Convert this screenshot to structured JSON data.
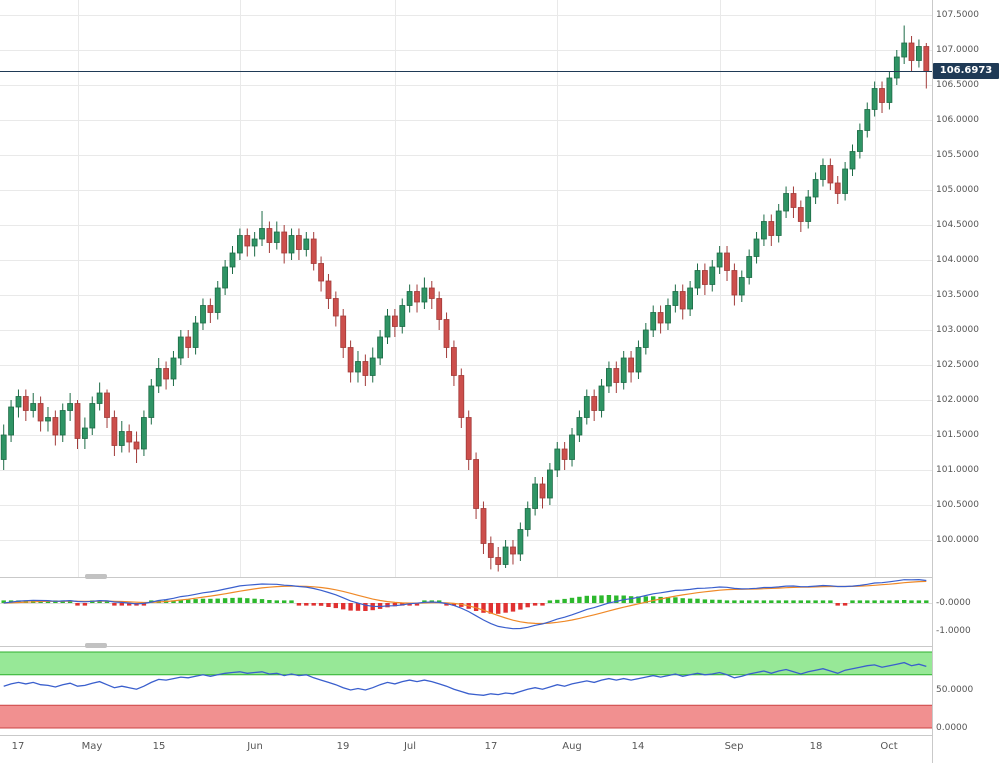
{
  "colors": {
    "background": "#ffffff",
    "grid": "#e9e9e9",
    "separator": "#c9c9c9",
    "axis_text": "#555555",
    "bull": "#2f9465",
    "bull_border": "#1d6b46",
    "bear": "#cc4f4c",
    "bear_border": "#a23b39",
    "price_line": "#1f3a56",
    "badge_bg": "#1f3a56",
    "badge_text": "#ffffff",
    "macd_line": "#3a5fcd",
    "signal_line": "#ef8927",
    "hist_pos": "#2db82d",
    "hist_neg": "#e03131",
    "band_green_fill": "#97e897",
    "band_green_edge": "#2faf2f",
    "band_red_fill": "#f19090",
    "band_red_edge": "#cc4444",
    "stoch_line": "#3a5fcd"
  },
  "chart_data": {
    "type": "candlestick",
    "panels": [
      "price",
      "macd",
      "stochastic"
    ],
    "main": {
      "last_price": 106.6973,
      "last_price_label": "106.6973",
      "price_axis_labels": [
        "107.5000",
        "107.0000",
        "106.5000",
        "106.0000",
        "105.5000",
        "105.0000",
        "104.5000",
        "104.0000",
        "103.5000",
        "103.0000",
        "102.5000",
        "102.0000",
        "101.5000",
        "101.0000",
        "100.5000",
        "100.0000"
      ],
      "price_axis": {
        "max": 107.5,
        "min": 100.0,
        "step": 0.5
      },
      "month_grid_indices": [
        12,
        34,
        55,
        77,
        99,
        120
      ],
      "candles": [
        [
          101.15,
          101.65,
          101.0,
          101.5
        ],
        [
          101.5,
          102.0,
          101.4,
          101.9
        ],
        [
          101.9,
          102.15,
          101.75,
          102.05
        ],
        [
          102.05,
          102.15,
          101.7,
          101.85
        ],
        [
          101.85,
          102.1,
          101.75,
          101.95
        ],
        [
          101.95,
          102.05,
          101.55,
          101.7
        ],
        [
          101.7,
          101.9,
          101.55,
          101.75
        ],
        [
          101.75,
          101.85,
          101.35,
          101.5
        ],
        [
          101.5,
          101.95,
          101.4,
          101.85
        ],
        [
          101.85,
          102.1,
          101.7,
          101.95
        ],
        [
          101.95,
          102.0,
          101.3,
          101.45
        ],
        [
          101.45,
          101.75,
          101.3,
          101.6
        ],
        [
          101.6,
          102.05,
          101.5,
          101.95
        ],
        [
          101.95,
          102.25,
          101.85,
          102.1
        ],
        [
          102.1,
          102.15,
          101.6,
          101.75
        ],
        [
          101.75,
          101.85,
          101.2,
          101.35
        ],
        [
          101.35,
          101.7,
          101.25,
          101.55
        ],
        [
          101.55,
          101.65,
          101.25,
          101.4
        ],
        [
          101.4,
          101.55,
          101.1,
          101.3
        ],
        [
          101.3,
          101.85,
          101.2,
          101.75
        ],
        [
          101.75,
          102.3,
          101.65,
          102.2
        ],
        [
          102.2,
          102.6,
          102.1,
          102.45
        ],
        [
          102.45,
          102.55,
          102.15,
          102.3
        ],
        [
          102.3,
          102.7,
          102.2,
          102.6
        ],
        [
          102.6,
          103.0,
          102.5,
          102.9
        ],
        [
          102.9,
          103.0,
          102.6,
          102.75
        ],
        [
          102.75,
          103.2,
          102.65,
          103.1
        ],
        [
          103.1,
          103.45,
          103.0,
          103.35
        ],
        [
          103.35,
          103.45,
          103.1,
          103.25
        ],
        [
          103.25,
          103.7,
          103.15,
          103.6
        ],
        [
          103.6,
          104.0,
          103.5,
          103.9
        ],
        [
          103.9,
          104.2,
          103.8,
          104.1
        ],
        [
          104.1,
          104.45,
          104.0,
          104.35
        ],
        [
          104.35,
          104.45,
          104.05,
          104.2
        ],
        [
          104.2,
          104.4,
          104.05,
          104.3
        ],
        [
          104.3,
          104.7,
          104.2,
          104.45
        ],
        [
          104.45,
          104.55,
          104.1,
          104.25
        ],
        [
          104.25,
          104.55,
          104.15,
          104.4
        ],
        [
          104.4,
          104.5,
          103.95,
          104.1
        ],
        [
          104.1,
          104.45,
          104.0,
          104.35
        ],
        [
          104.35,
          104.45,
          104.0,
          104.15
        ],
        [
          104.15,
          104.4,
          104.05,
          104.3
        ],
        [
          104.3,
          104.4,
          103.85,
          103.95
        ],
        [
          103.95,
          104.05,
          103.55,
          103.7
        ],
        [
          103.7,
          103.8,
          103.3,
          103.45
        ],
        [
          103.45,
          103.55,
          103.05,
          103.2
        ],
        [
          103.2,
          103.3,
          102.6,
          102.75
        ],
        [
          102.75,
          102.85,
          102.25,
          102.4
        ],
        [
          102.4,
          102.7,
          102.25,
          102.55
        ],
        [
          102.55,
          102.65,
          102.2,
          102.35
        ],
        [
          102.35,
          102.75,
          102.25,
          102.6
        ],
        [
          102.6,
          103.0,
          102.5,
          102.9
        ],
        [
          102.9,
          103.3,
          102.8,
          103.2
        ],
        [
          103.2,
          103.3,
          102.9,
          103.05
        ],
        [
          103.05,
          103.45,
          102.95,
          103.35
        ],
        [
          103.35,
          103.65,
          103.25,
          103.55
        ],
        [
          103.55,
          103.65,
          103.25,
          103.4
        ],
        [
          103.4,
          103.75,
          103.3,
          103.6
        ],
        [
          103.6,
          103.7,
          103.3,
          103.45
        ],
        [
          103.45,
          103.55,
          103.0,
          103.15
        ],
        [
          103.15,
          103.25,
          102.6,
          102.75
        ],
        [
          102.75,
          102.85,
          102.2,
          102.35
        ],
        [
          102.35,
          102.45,
          101.6,
          101.75
        ],
        [
          101.75,
          101.85,
          101.0,
          101.15
        ],
        [
          101.15,
          101.25,
          100.3,
          100.45
        ],
        [
          100.45,
          100.55,
          99.8,
          99.95
        ],
        [
          99.95,
          100.05,
          99.58,
          99.75
        ],
        [
          99.75,
          99.9,
          99.55,
          99.65
        ],
        [
          99.65,
          100.0,
          99.6,
          99.9
        ],
        [
          99.9,
          100.0,
          99.65,
          99.8
        ],
        [
          99.8,
          100.25,
          99.7,
          100.15
        ],
        [
          100.15,
          100.55,
          100.05,
          100.45
        ],
        [
          100.45,
          100.9,
          100.35,
          100.8
        ],
        [
          100.8,
          100.9,
          100.45,
          100.6
        ],
        [
          100.6,
          101.1,
          100.5,
          101.0
        ],
        [
          101.0,
          101.4,
          100.9,
          101.3
        ],
        [
          101.3,
          101.4,
          101.0,
          101.15
        ],
        [
          101.15,
          101.6,
          101.05,
          101.5
        ],
        [
          101.5,
          101.85,
          101.4,
          101.75
        ],
        [
          101.75,
          102.15,
          101.65,
          102.05
        ],
        [
          102.05,
          102.15,
          101.7,
          101.85
        ],
        [
          101.85,
          102.3,
          101.75,
          102.2
        ],
        [
          102.2,
          102.55,
          102.1,
          102.45
        ],
        [
          102.45,
          102.55,
          102.1,
          102.25
        ],
        [
          102.25,
          102.7,
          102.15,
          102.6
        ],
        [
          102.6,
          102.7,
          102.25,
          102.4
        ],
        [
          102.4,
          102.85,
          102.3,
          102.75
        ],
        [
          102.75,
          103.1,
          102.65,
          103.0
        ],
        [
          103.0,
          103.35,
          102.9,
          103.25
        ],
        [
          103.25,
          103.35,
          102.95,
          103.1
        ],
        [
          103.1,
          103.45,
          103.0,
          103.35
        ],
        [
          103.35,
          103.65,
          103.25,
          103.55
        ],
        [
          103.55,
          103.65,
          103.15,
          103.3
        ],
        [
          103.3,
          103.7,
          103.2,
          103.6
        ],
        [
          103.6,
          103.95,
          103.5,
          103.85
        ],
        [
          103.85,
          103.95,
          103.5,
          103.65
        ],
        [
          103.65,
          104.0,
          103.55,
          103.9
        ],
        [
          103.9,
          104.2,
          103.8,
          104.1
        ],
        [
          104.1,
          104.2,
          103.7,
          103.85
        ],
        [
          103.85,
          103.95,
          103.35,
          103.5
        ],
        [
          103.5,
          103.85,
          103.4,
          103.75
        ],
        [
          103.75,
          104.15,
          103.65,
          104.05
        ],
        [
          104.05,
          104.4,
          103.95,
          104.3
        ],
        [
          104.3,
          104.65,
          104.2,
          104.55
        ],
        [
          104.55,
          104.65,
          104.2,
          104.35
        ],
        [
          104.35,
          104.8,
          104.25,
          104.7
        ],
        [
          104.7,
          105.05,
          104.6,
          104.95
        ],
        [
          104.95,
          105.05,
          104.6,
          104.75
        ],
        [
          104.75,
          104.85,
          104.4,
          104.55
        ],
        [
          104.55,
          105.0,
          104.45,
          104.9
        ],
        [
          104.9,
          105.25,
          104.8,
          105.15
        ],
        [
          105.15,
          105.45,
          105.05,
          105.35
        ],
        [
          105.35,
          105.45,
          105.0,
          105.1
        ],
        [
          105.1,
          105.2,
          104.8,
          104.95
        ],
        [
          104.95,
          105.4,
          104.85,
          105.3
        ],
        [
          105.3,
          105.65,
          105.2,
          105.55
        ],
        [
          105.55,
          105.95,
          105.45,
          105.85
        ],
        [
          105.85,
          106.25,
          105.75,
          106.15
        ],
        [
          106.15,
          106.55,
          106.05,
          106.45
        ],
        [
          106.45,
          106.55,
          106.1,
          106.25
        ],
        [
          106.25,
          106.7,
          106.15,
          106.6
        ],
        [
          106.6,
          107.0,
          106.5,
          106.9
        ],
        [
          106.9,
          107.35,
          106.8,
          107.1
        ],
        [
          107.1,
          107.2,
          106.7,
          106.85
        ],
        [
          106.85,
          107.15,
          106.75,
          107.05
        ],
        [
          107.05,
          107.1,
          106.45,
          106.6973
        ]
      ]
    },
    "macd": {
      "params": {
        "fast": 12,
        "slow": 26,
        "signal": 9
      },
      "axis_labels": [
        {
          "label": "-0.0000",
          "value": 0
        },
        {
          "label": "-1.0000",
          "value": -1
        }
      ]
    },
    "stoch": {
      "overbought": 70,
      "oversold": 30,
      "axis_labels": [
        {
          "label": "50.0000",
          "value": 50
        },
        {
          "label": "0.0000",
          "value": 0
        }
      ],
      "values": [
        55,
        58,
        60,
        58,
        60,
        57,
        56,
        54,
        57,
        59,
        55,
        56,
        59,
        61,
        57,
        53,
        55,
        53,
        51,
        55,
        60,
        64,
        63,
        65,
        67,
        66,
        68,
        70,
        68,
        70,
        72,
        73,
        74,
        72,
        73,
        74,
        71,
        72,
        69,
        71,
        69,
        70,
        66,
        63,
        60,
        57,
        53,
        50,
        52,
        50,
        53,
        57,
        60,
        58,
        61,
        63,
        61,
        63,
        61,
        58,
        55,
        51,
        48,
        45,
        44,
        43,
        45,
        44,
        46,
        45,
        48,
        51,
        53,
        51,
        54,
        57,
        55,
        58,
        60,
        62,
        60,
        63,
        65,
        63,
        65,
        63,
        65,
        67,
        69,
        67,
        69,
        71,
        68,
        70,
        72,
        70,
        71,
        73,
        70,
        66,
        68,
        71,
        73,
        75,
        72,
        75,
        77,
        74,
        71,
        74,
        76,
        78,
        75,
        72,
        76,
        78,
        80,
        82,
        83,
        80,
        82,
        84,
        86,
        82,
        84,
        81
      ]
    },
    "x_axis": {
      "labels": [
        {
          "label": "17",
          "index": 2
        },
        {
          "label": "May",
          "index": 12
        },
        {
          "label": "15",
          "index": 21
        },
        {
          "label": "Jun",
          "index": 34
        },
        {
          "label": "19",
          "index": 46
        },
        {
          "label": "Jul",
          "index": 55
        },
        {
          "label": "17",
          "index": 66
        },
        {
          "label": "Aug",
          "index": 77
        },
        {
          "label": "14",
          "index": 86
        },
        {
          "label": "Sep",
          "index": 99
        },
        {
          "label": "18",
          "index": 110
        },
        {
          "label": "Oct",
          "index": 120
        }
      ]
    }
  }
}
